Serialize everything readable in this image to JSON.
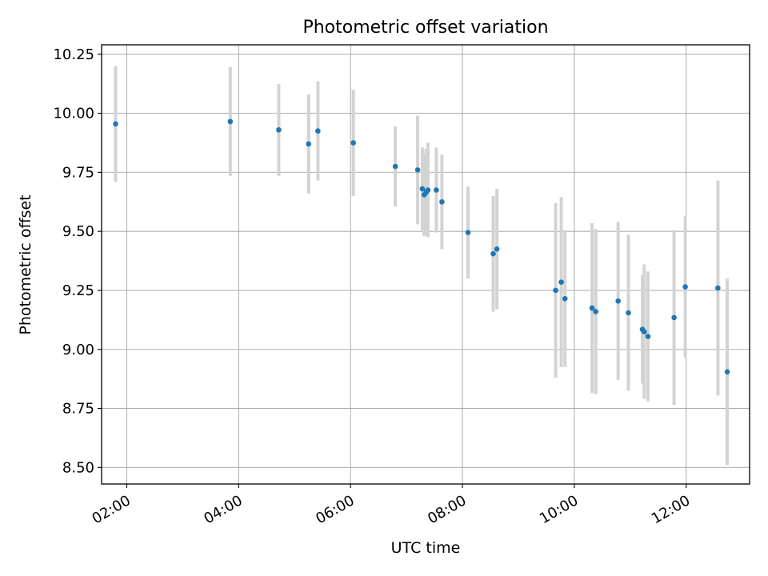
{
  "chart_data": {
    "type": "scatter",
    "title": "Photometric offset variation",
    "xlabel": "UTC time",
    "ylabel": "Photometric offset",
    "xlim": [
      "01:33",
      "13:08"
    ],
    "ylim": [
      8.43,
      10.29
    ],
    "grid": true,
    "x_ticks": [
      "02:00",
      "04:00",
      "06:00",
      "08:00",
      "10:00",
      "12:00"
    ],
    "y_ticks": [
      "8.50",
      "8.75",
      "9.00",
      "9.25",
      "9.50",
      "9.75",
      "10.00",
      "10.25"
    ],
    "point_color": "#1f77b4",
    "errorbar_color": "#d3d3d3",
    "series": [
      {
        "points": [
          {
            "x": "01:48",
            "y": 9.955,
            "yerr": 0.245
          },
          {
            "x": "03:51",
            "y": 9.965,
            "yerr": 0.23
          },
          {
            "x": "04:43",
            "y": 9.93,
            "yerr": 0.195
          },
          {
            "x": "05:15",
            "y": 9.87,
            "yerr": 0.21
          },
          {
            "x": "05:25",
            "y": 9.925,
            "yerr": 0.21
          },
          {
            "x": "06:03",
            "y": 9.875,
            "yerr": 0.225
          },
          {
            "x": "06:48",
            "y": 9.775,
            "yerr": 0.17
          },
          {
            "x": "07:12",
            "y": 9.76,
            "yerr": 0.23
          },
          {
            "x": "07:17",
            "y": 9.68,
            "yerr": 0.175
          },
          {
            "x": "07:19",
            "y": 9.655,
            "yerr": 0.175
          },
          {
            "x": "07:21",
            "y": 9.665,
            "yerr": 0.185
          },
          {
            "x": "07:23",
            "y": 9.675,
            "yerr": 0.2
          },
          {
            "x": "07:32",
            "y": 9.675,
            "yerr": 0.18
          },
          {
            "x": "07:38",
            "y": 9.625,
            "yerr": 0.2
          },
          {
            "x": "08:06",
            "y": 9.495,
            "yerr": 0.195
          },
          {
            "x": "08:33",
            "y": 9.405,
            "yerr": 0.245
          },
          {
            "x": "08:37",
            "y": 9.425,
            "yerr": 0.255
          },
          {
            "x": "09:40",
            "y": 9.25,
            "yerr": 0.37
          },
          {
            "x": "09:46",
            "y": 9.285,
            "yerr": 0.36
          },
          {
            "x": "09:50",
            "y": 9.215,
            "yerr": 0.29
          },
          {
            "x": "10:19",
            "y": 9.175,
            "yerr": 0.36
          },
          {
            "x": "10:23",
            "y": 9.16,
            "yerr": 0.35
          },
          {
            "x": "10:47",
            "y": 9.205,
            "yerr": 0.335
          },
          {
            "x": "10:58",
            "y": 9.155,
            "yerr": 0.33
          },
          {
            "x": "11:13",
            "y": 9.085,
            "yerr": 0.23
          },
          {
            "x": "11:15",
            "y": 9.075,
            "yerr": 0.285
          },
          {
            "x": "11:19",
            "y": 9.055,
            "yerr": 0.275
          },
          {
            "x": "11:47",
            "y": 9.135,
            "yerr": 0.37
          },
          {
            "x": "11:59",
            "y": 9.265,
            "yerr": 0.3
          },
          {
            "x": "12:34",
            "y": 9.26,
            "yerr": 0.455
          },
          {
            "x": "12:44",
            "y": 8.905,
            "yerr": 0.395
          }
        ]
      }
    ]
  }
}
